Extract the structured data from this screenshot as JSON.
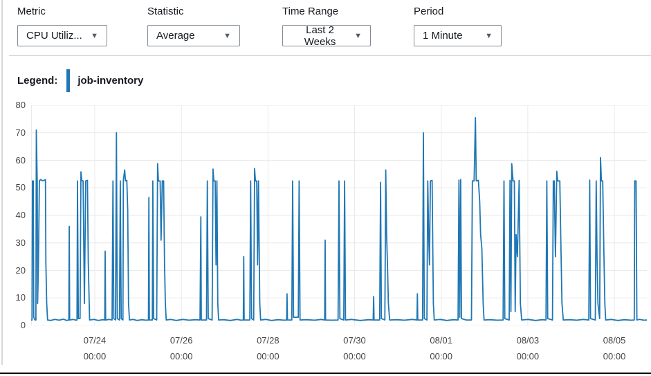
{
  "controls": [
    {
      "label": "Metric",
      "value": "CPU Utiliz...",
      "icon": "chevron-down"
    },
    {
      "label": "Statistic",
      "value": "Average",
      "icon": "chevron-down"
    },
    {
      "label": "Time Range",
      "value": "Last 2 Weeks",
      "icon": "chevron-down"
    },
    {
      "label": "Period",
      "value": "1 Minute",
      "icon": "chevron-down"
    }
  ],
  "legend": {
    "label": "Legend:",
    "series_name": "job-inventory"
  },
  "colors": {
    "series": "#1f77b4",
    "grid": "#e9e9e9",
    "axis_text": "#444444",
    "divider": "#cccccc",
    "text": "#16191f"
  },
  "chart_data": {
    "type": "line",
    "title": "",
    "xlabel": "",
    "ylabel": "",
    "ylim": [
      0,
      80
    ],
    "ytick_step": 10,
    "grid": true,
    "legend_position": "top-left",
    "x_unit": "days_from_window_start",
    "x_max": 14.22,
    "x_ticks": [
      {
        "t": 1.47,
        "date": "07/24",
        "time": "00:00"
      },
      {
        "t": 3.47,
        "date": "07/26",
        "time": "00:00"
      },
      {
        "t": 5.47,
        "date": "07/28",
        "time": "00:00"
      },
      {
        "t": 7.47,
        "date": "07/30",
        "time": "00:00"
      },
      {
        "t": 9.47,
        "date": "08/01",
        "time": "00:00"
      },
      {
        "t": 11.47,
        "date": "08/03",
        "time": "00:00"
      },
      {
        "t": 13.47,
        "date": "08/05",
        "time": "00:00"
      }
    ],
    "series": [
      {
        "name": "job-inventory",
        "color": "#1f77b4",
        "baseline": 2,
        "points": [
          [
            0,
            2
          ],
          [
            0.02,
            2
          ],
          [
            0.03,
            52.5
          ],
          [
            0.05,
            52.5
          ],
          [
            0.06,
            3
          ],
          [
            0.09,
            2
          ],
          [
            0.11,
            2
          ],
          [
            0.12,
            71
          ],
          [
            0.14,
            52
          ],
          [
            0.15,
            8
          ],
          [
            0.17,
            23
          ],
          [
            0.19,
            52.5
          ],
          [
            0.22,
            53
          ],
          [
            0.26,
            52.6
          ],
          [
            0.3,
            52.7
          ],
          [
            0.33,
            53
          ],
          [
            0.34,
            23
          ],
          [
            0.36,
            8
          ],
          [
            0.38,
            2
          ],
          [
            0.45,
            1.8
          ],
          [
            0.55,
            2.2
          ],
          [
            0.65,
            1.9
          ],
          [
            0.75,
            2.3
          ],
          [
            0.82,
            1.8
          ],
          [
            0.87,
            2
          ],
          [
            0.88,
            36
          ],
          [
            0.89,
            2
          ],
          [
            0.97,
            2.2
          ],
          [
            1.04,
            1.9
          ],
          [
            1.06,
            2
          ],
          [
            1.07,
            52.5
          ],
          [
            1.09,
            2.5
          ],
          [
            1.13,
            2.5
          ],
          [
            1.15,
            55.8
          ],
          [
            1.17,
            52.7
          ],
          [
            1.2,
            52.5
          ],
          [
            1.23,
            8
          ],
          [
            1.26,
            52.5
          ],
          [
            1.3,
            52.7
          ],
          [
            1.32,
            23
          ],
          [
            1.35,
            2
          ],
          [
            1.45,
            2.2
          ],
          [
            1.55,
            1.8
          ],
          [
            1.65,
            2.1
          ],
          [
            1.7,
            2
          ],
          [
            1.71,
            27
          ],
          [
            1.72,
            2
          ],
          [
            1.8,
            2.2
          ],
          [
            1.87,
            2
          ],
          [
            1.89,
            52.5
          ],
          [
            1.91,
            2.5
          ],
          [
            1.95,
            2
          ],
          [
            1.97,
            70
          ],
          [
            1.99,
            2.5
          ],
          [
            2.04,
            2
          ],
          [
            2.06,
            52.5
          ],
          [
            2.08,
            2.5
          ],
          [
            2.12,
            2
          ],
          [
            2.13,
            52.7
          ],
          [
            2.16,
            56.5
          ],
          [
            2.18,
            52.5
          ],
          [
            2.21,
            52.7
          ],
          [
            2.23,
            42
          ],
          [
            2.25,
            8
          ],
          [
            2.27,
            2
          ],
          [
            2.35,
            2.2
          ],
          [
            2.45,
            1.8
          ],
          [
            2.55,
            2.1
          ],
          [
            2.65,
            1.9
          ],
          [
            2.71,
            2
          ],
          [
            2.72,
            46.5
          ],
          [
            2.73,
            2
          ],
          [
            2.8,
            2
          ],
          [
            2.81,
            52.5
          ],
          [
            2.83,
            2.5
          ],
          [
            2.9,
            2
          ],
          [
            2.92,
            58.8
          ],
          [
            2.94,
            52.5
          ],
          [
            2.98,
            52.5
          ],
          [
            3.0,
            31
          ],
          [
            3.03,
            52.5
          ],
          [
            3.06,
            52.5
          ],
          [
            3.08,
            23
          ],
          [
            3.1,
            8
          ],
          [
            3.12,
            2
          ],
          [
            3.22,
            2.2
          ],
          [
            3.35,
            1.8
          ],
          [
            3.5,
            2.2
          ],
          [
            3.65,
            1.9
          ],
          [
            3.8,
            2.1
          ],
          [
            3.9,
            2
          ],
          [
            3.92,
            39.5
          ],
          [
            3.93,
            2
          ],
          [
            4.05,
            2
          ],
          [
            4.07,
            52.5
          ],
          [
            4.09,
            2.5
          ],
          [
            4.18,
            2
          ],
          [
            4.2,
            56.8
          ],
          [
            4.22,
            52.5
          ],
          [
            4.25,
            52.5
          ],
          [
            4.27,
            22
          ],
          [
            4.29,
            52.5
          ],
          [
            4.31,
            8
          ],
          [
            4.33,
            2
          ],
          [
            4.45,
            2.1
          ],
          [
            4.6,
            1.8
          ],
          [
            4.75,
            2.2
          ],
          [
            4.85,
            1.9
          ],
          [
            4.9,
            2
          ],
          [
            4.91,
            25
          ],
          [
            4.92,
            2
          ],
          [
            5.05,
            2
          ],
          [
            5.07,
            52.5
          ],
          [
            5.09,
            2.5
          ],
          [
            5.14,
            2
          ],
          [
            5.16,
            57
          ],
          [
            5.18,
            52.5
          ],
          [
            5.21,
            52.5
          ],
          [
            5.23,
            22
          ],
          [
            5.25,
            52.5
          ],
          [
            5.28,
            8
          ],
          [
            5.3,
            2
          ],
          [
            5.42,
            2.2
          ],
          [
            5.55,
            1.8
          ],
          [
            5.7,
            2.1
          ],
          [
            5.85,
            1.9
          ],
          [
            5.9,
            2
          ],
          [
            5.91,
            11.5
          ],
          [
            5.92,
            2
          ],
          [
            6.02,
            2
          ],
          [
            6.04,
            52.5
          ],
          [
            6.06,
            3
          ],
          [
            6.17,
            3
          ],
          [
            6.19,
            52.5
          ],
          [
            6.21,
            2
          ],
          [
            6.35,
            2.1
          ],
          [
            6.55,
            1.9
          ],
          [
            6.7,
            2.2
          ],
          [
            6.78,
            2
          ],
          [
            6.79,
            31
          ],
          [
            6.8,
            2
          ],
          [
            6.95,
            1.9
          ],
          [
            7.09,
            2
          ],
          [
            7.11,
            52.5
          ],
          [
            7.13,
            2.5
          ],
          [
            7.22,
            2
          ],
          [
            7.24,
            52.5
          ],
          [
            7.26,
            2
          ],
          [
            7.4,
            2.2
          ],
          [
            7.6,
            1.8
          ],
          [
            7.8,
            2.1
          ],
          [
            7.9,
            2
          ],
          [
            7.91,
            10.5
          ],
          [
            7.92,
            2
          ],
          [
            8.05,
            2
          ],
          [
            8.07,
            52
          ],
          [
            8.09,
            2.5
          ],
          [
            8.17,
            2
          ],
          [
            8.19,
            56.5
          ],
          [
            8.21,
            33
          ],
          [
            8.23,
            22
          ],
          [
            8.25,
            8
          ],
          [
            8.28,
            2
          ],
          [
            8.45,
            2.1
          ],
          [
            8.62,
            1.9
          ],
          [
            8.8,
            2.2
          ],
          [
            8.91,
            2
          ],
          [
            8.92,
            11.5
          ],
          [
            8.93,
            2
          ],
          [
            9.04,
            2
          ],
          [
            9.06,
            70
          ],
          [
            9.08,
            2.5
          ],
          [
            9.14,
            2
          ],
          [
            9.16,
            52.5
          ],
          [
            9.18,
            33
          ],
          [
            9.2,
            22
          ],
          [
            9.22,
            52.5
          ],
          [
            9.26,
            52.7
          ],
          [
            9.29,
            8
          ],
          [
            9.31,
            2
          ],
          [
            9.45,
            2.2
          ],
          [
            9.6,
            1.8
          ],
          [
            9.75,
            2.1
          ],
          [
            9.86,
            2
          ],
          [
            9.88,
            52.8
          ],
          [
            9.9,
            3
          ],
          [
            9.92,
            53
          ],
          [
            9.94,
            2.5
          ],
          [
            10.05,
            2
          ],
          [
            10.17,
            2
          ],
          [
            10.19,
            52.5
          ],
          [
            10.23,
            52.5
          ],
          [
            10.26,
            75.5
          ],
          [
            10.28,
            52.5
          ],
          [
            10.33,
            52.7
          ],
          [
            10.36,
            45
          ],
          [
            10.38,
            33
          ],
          [
            10.41,
            28
          ],
          [
            10.44,
            8
          ],
          [
            10.46,
            2
          ],
          [
            10.6,
            2.1
          ],
          [
            10.76,
            1.9
          ],
          [
            10.9,
            2
          ],
          [
            10.92,
            52.5
          ],
          [
            10.94,
            2.5
          ],
          [
            11.04,
            2
          ],
          [
            11.06,
            52.7
          ],
          [
            11.08,
            5
          ],
          [
            11.1,
            58.8
          ],
          [
            11.13,
            52.5
          ],
          [
            11.16,
            52.5
          ],
          [
            11.18,
            5
          ],
          [
            11.2,
            33
          ],
          [
            11.23,
            25
          ],
          [
            11.27,
            52.7
          ],
          [
            11.3,
            8
          ],
          [
            11.33,
            2
          ],
          [
            11.48,
            2.2
          ],
          [
            11.65,
            1.8
          ],
          [
            11.8,
            2.1
          ],
          [
            11.89,
            2
          ],
          [
            11.91,
            52.5
          ],
          [
            11.93,
            2.5
          ],
          [
            12.04,
            2
          ],
          [
            12.06,
            52.5
          ],
          [
            12.08,
            52.5
          ],
          [
            12.11,
            25
          ],
          [
            12.14,
            56
          ],
          [
            12.16,
            52.5
          ],
          [
            12.21,
            52.5
          ],
          [
            12.23,
            33
          ],
          [
            12.26,
            8
          ],
          [
            12.29,
            2
          ],
          [
            12.44,
            2.1
          ],
          [
            12.6,
            1.9
          ],
          [
            12.75,
            2.2
          ],
          [
            12.88,
            2
          ],
          [
            12.9,
            52.8
          ],
          [
            12.92,
            2.5
          ],
          [
            13.03,
            2
          ],
          [
            13.05,
            52.5
          ],
          [
            13.07,
            25
          ],
          [
            13.09,
            8
          ],
          [
            13.13,
            2.5
          ],
          [
            13.15,
            61
          ],
          [
            13.17,
            52.5
          ],
          [
            13.2,
            52.5
          ],
          [
            13.23,
            25
          ],
          [
            13.25,
            8
          ],
          [
            13.27,
            2
          ],
          [
            13.4,
            2.2
          ],
          [
            13.55,
            1.8
          ],
          [
            13.7,
            2.1
          ],
          [
            13.85,
            1.9
          ],
          [
            13.93,
            2
          ],
          [
            13.94,
            52.5
          ],
          [
            13.97,
            52.5
          ],
          [
            13.99,
            2
          ],
          [
            14.05,
            2.2
          ],
          [
            14.15,
            1.9
          ],
          [
            14.22,
            2
          ]
        ]
      }
    ]
  }
}
